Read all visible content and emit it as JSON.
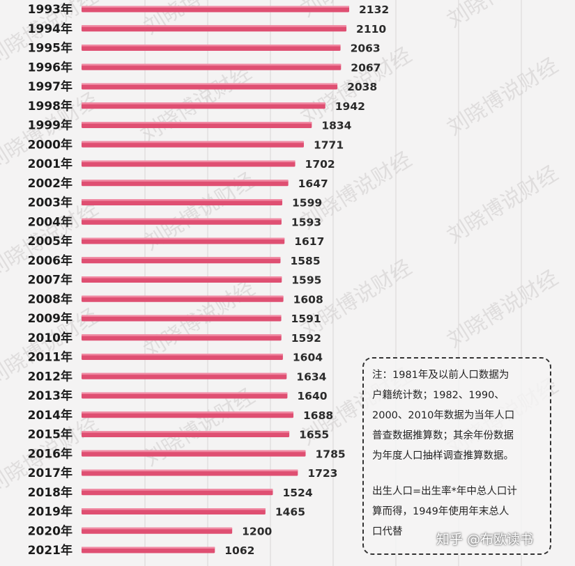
{
  "chart_data": {
    "type": "bar",
    "orientation": "horizontal",
    "categories": [
      "1993年",
      "1994年",
      "1995年",
      "1996年",
      "1997年",
      "1998年",
      "1999年",
      "2000年",
      "2001年",
      "2002年",
      "2003年",
      "2004年",
      "2005年",
      "2006年",
      "2007年",
      "2008年",
      "2009年",
      "2010年",
      "2011年",
      "2012年",
      "2013年",
      "2014年",
      "2015年",
      "2016年",
      "2017年",
      "2018年",
      "2019年",
      "2020年",
      "2021年"
    ],
    "values": [
      2132,
      2110,
      2063,
      2067,
      2038,
      1942,
      1834,
      1771,
      1702,
      1647,
      1599,
      1593,
      1617,
      1585,
      1595,
      1608,
      1591,
      1592,
      1604,
      1634,
      1640,
      1688,
      1655,
      1785,
      1723,
      1524,
      1465,
      1200,
      1062
    ],
    "value_labels": [
      "2132",
      "2110",
      "2063",
      "2067",
      "2038",
      "1942",
      "1834",
      "1771",
      "1702",
      "1647",
      "1599",
      "1593",
      "1617",
      "1585",
      "1595",
      "1608",
      "1591",
      "1592",
      "1604",
      "1634",
      "1640",
      "1688",
      "1655",
      "1785",
      "1723",
      "1524",
      "1465",
      "1200",
      "1062"
    ],
    "title": "",
    "xlabel": "",
    "ylabel": "",
    "xlim": [
      0,
      2132
    ],
    "grid": true,
    "bar_color": "#df4f72",
    "bar_highlight_color": "#f08aa3"
  },
  "note": {
    "lines": [
      "注：1981年及以前人口数据为",
      "户籍统计数；1982、1990、",
      "2000、2010年数据为当年人口",
      "普查数据推算数；其余年份数据",
      "为年度人口抽样调查推算数据。"
    ],
    "lines2": [
      "出生人口=出生率*年中总人口计",
      "算而得，1949年使用年末总人",
      "口代替"
    ]
  },
  "watermark": "刘晓博说财经",
  "credit": "知乎 @布欧读书"
}
